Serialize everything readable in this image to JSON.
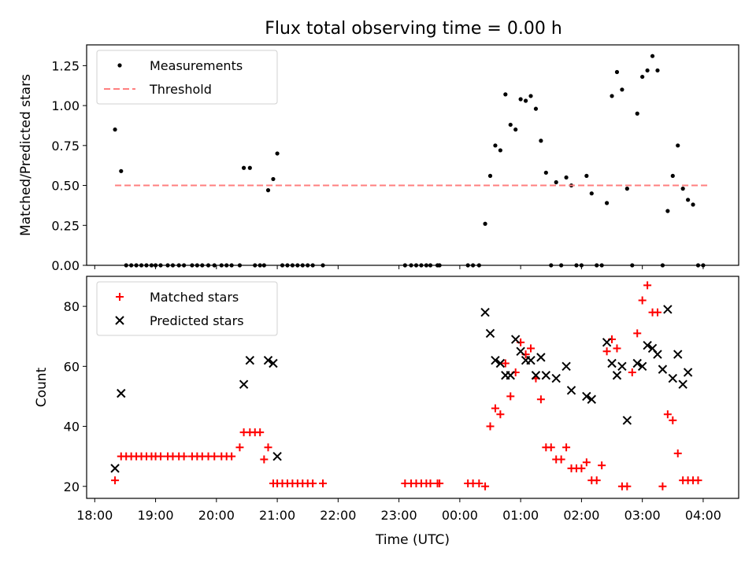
{
  "title": "Flux total observing time = 0.00 h",
  "chart_data": [
    {
      "type": "scatter",
      "ylabel": "Matched/Predicted stars",
      "ylim": [
        0.0,
        1.38
      ],
      "xlim": [
        "17:52",
        "04:35"
      ],
      "y_ticks": [
        "0.00",
        "0.25",
        "0.50",
        "0.75",
        "1.00",
        "1.25"
      ],
      "legend_position": "top-left",
      "series": [
        {
          "name": "Measurements",
          "color": "#000000",
          "marker": "dot",
          "points": [
            [
              "18:20",
              0.85
            ],
            [
              "18:26",
              0.59
            ],
            [
              "18:31",
              0
            ],
            [
              "18:36",
              0
            ],
            [
              "18:41",
              0
            ],
            [
              "18:46",
              0
            ],
            [
              "18:51",
              0
            ],
            [
              "18:56",
              0
            ],
            [
              "19:00",
              0
            ],
            [
              "19:05",
              0
            ],
            [
              "19:12",
              0
            ],
            [
              "19:17",
              0
            ],
            [
              "19:23",
              0
            ],
            [
              "19:28",
              0
            ],
            [
              "19:36",
              0
            ],
            [
              "19:41",
              0
            ],
            [
              "19:46",
              0
            ],
            [
              "19:52",
              0
            ],
            [
              "19:58",
              0
            ],
            [
              "20:05",
              0
            ],
            [
              "20:10",
              0
            ],
            [
              "20:15",
              0
            ],
            [
              "20:23",
              0
            ],
            [
              "20:27",
              0.61
            ],
            [
              "20:33",
              0.61
            ],
            [
              "20:38",
              0
            ],
            [
              "20:43",
              0
            ],
            [
              "20:47",
              0
            ],
            [
              "20:51",
              0.47
            ],
            [
              "20:56",
              0.54
            ],
            [
              "21:00",
              0.7
            ],
            [
              "21:05",
              0
            ],
            [
              "21:10",
              0
            ],
            [
              "21:15",
              0
            ],
            [
              "21:20",
              0
            ],
            [
              "21:25",
              0
            ],
            [
              "21:30",
              0
            ],
            [
              "21:35",
              0
            ],
            [
              "21:45",
              0
            ],
            [
              "23:06",
              0
            ],
            [
              "23:12",
              0
            ],
            [
              "23:17",
              0
            ],
            [
              "23:22",
              0
            ],
            [
              "23:27",
              0
            ],
            [
              "23:31",
              0
            ],
            [
              "23:38",
              0
            ],
            [
              "23:40",
              0
            ],
            [
              "00:08",
              0
            ],
            [
              "00:13",
              0
            ],
            [
              "00:19",
              0
            ],
            [
              "00:25",
              0.26
            ],
            [
              "00:30",
              0.56
            ],
            [
              "00:35",
              0.75
            ],
            [
              "00:40",
              0.72
            ],
            [
              "00:45",
              1.07
            ],
            [
              "00:50",
              0.88
            ],
            [
              "00:55",
              0.85
            ],
            [
              "01:00",
              1.04
            ],
            [
              "01:05",
              1.03
            ],
            [
              "01:10",
              1.06
            ],
            [
              "01:15",
              0.98
            ],
            [
              "01:20",
              0.78
            ],
            [
              "01:25",
              0.58
            ],
            [
              "01:30",
              0
            ],
            [
              "01:35",
              0.52
            ],
            [
              "01:40",
              0
            ],
            [
              "01:45",
              0.55
            ],
            [
              "01:50",
              0.5
            ],
            [
              "01:55",
              0
            ],
            [
              "02:00",
              0
            ],
            [
              "02:05",
              0.56
            ],
            [
              "02:10",
              0.45
            ],
            [
              "02:15",
              0
            ],
            [
              "02:20",
              0
            ],
            [
              "02:25",
              0.39
            ],
            [
              "02:30",
              1.06
            ],
            [
              "02:35",
              1.21
            ],
            [
              "02:40",
              1.1
            ],
            [
              "02:45",
              0.48
            ],
            [
              "02:50",
              0
            ],
            [
              "02:55",
              0.95
            ],
            [
              "03:00",
              1.18
            ],
            [
              "03:05",
              1.22
            ],
            [
              "03:10",
              1.31
            ],
            [
              "03:15",
              1.22
            ],
            [
              "03:20",
              0
            ],
            [
              "03:25",
              0.34
            ],
            [
              "03:30",
              0.56
            ],
            [
              "03:35",
              0.75
            ],
            [
              "03:40",
              0.48
            ],
            [
              "03:45",
              0.41
            ],
            [
              "03:50",
              0.38
            ],
            [
              "03:55",
              0
            ],
            [
              "04:00",
              0
            ]
          ]
        },
        {
          "name": "Threshold",
          "color": "#ff7f7f",
          "style": "dashed",
          "points": [
            [
              "18:20",
              0.5
            ],
            [
              "04:05",
              0.5
            ]
          ]
        }
      ]
    },
    {
      "type": "scatter",
      "xlabel": "Time (UTC)",
      "ylabel": "Count",
      "ylim": [
        16,
        90
      ],
      "xlim": [
        "17:52",
        "04:35"
      ],
      "y_ticks": [
        "20",
        "40",
        "60",
        "80"
      ],
      "x_ticks": [
        "18:00",
        "19:00",
        "20:00",
        "21:00",
        "22:00",
        "23:00",
        "00:00",
        "01:00",
        "02:00",
        "03:00",
        "04:00"
      ],
      "legend_position": "top-left",
      "series": [
        {
          "name": "Matched stars",
          "color": "#ff0000",
          "marker": "plus",
          "points": [
            [
              "18:20",
              22
            ],
            [
              "18:26",
              30
            ],
            [
              "18:31",
              30
            ],
            [
              "18:36",
              30
            ],
            [
              "18:41",
              30
            ],
            [
              "18:46",
              30
            ],
            [
              "18:51",
              30
            ],
            [
              "18:56",
              30
            ],
            [
              "19:00",
              30
            ],
            [
              "19:05",
              30
            ],
            [
              "19:12",
              30
            ],
            [
              "19:17",
              30
            ],
            [
              "19:23",
              30
            ],
            [
              "19:28",
              30
            ],
            [
              "19:36",
              30
            ],
            [
              "19:41",
              30
            ],
            [
              "19:46",
              30
            ],
            [
              "19:52",
              30
            ],
            [
              "19:58",
              30
            ],
            [
              "20:05",
              30
            ],
            [
              "20:10",
              30
            ],
            [
              "20:15",
              30
            ],
            [
              "20:23",
              33
            ],
            [
              "20:27",
              38
            ],
            [
              "20:33",
              38
            ],
            [
              "20:38",
              38
            ],
            [
              "20:43",
              38
            ],
            [
              "20:47",
              29
            ],
            [
              "20:51",
              33
            ],
            [
              "20:56",
              21
            ],
            [
              "21:00",
              21
            ],
            [
              "21:05",
              21
            ],
            [
              "21:10",
              21
            ],
            [
              "21:15",
              21
            ],
            [
              "21:20",
              21
            ],
            [
              "21:25",
              21
            ],
            [
              "21:30",
              21
            ],
            [
              "21:35",
              21
            ],
            [
              "21:45",
              21
            ],
            [
              "23:06",
              21
            ],
            [
              "23:12",
              21
            ],
            [
              "23:17",
              21
            ],
            [
              "23:22",
              21
            ],
            [
              "23:27",
              21
            ],
            [
              "23:31",
              21
            ],
            [
              "23:38",
              21
            ],
            [
              "23:40",
              21
            ],
            [
              "00:08",
              21
            ],
            [
              "00:13",
              21
            ],
            [
              "00:19",
              21
            ],
            [
              "00:25",
              20
            ],
            [
              "00:30",
              40
            ],
            [
              "00:35",
              46
            ],
            [
              "00:40",
              44
            ],
            [
              "00:45",
              61
            ],
            [
              "00:50",
              50
            ],
            [
              "00:55",
              58
            ],
            [
              "01:00",
              68
            ],
            [
              "01:05",
              64
            ],
            [
              "01:10",
              66
            ],
            [
              "01:15",
              56
            ],
            [
              "01:20",
              49
            ],
            [
              "01:25",
              33
            ],
            [
              "01:30",
              33
            ],
            [
              "01:35",
              29
            ],
            [
              "01:40",
              29
            ],
            [
              "01:45",
              33
            ],
            [
              "01:50",
              26
            ],
            [
              "01:55",
              26
            ],
            [
              "02:00",
              26
            ],
            [
              "02:05",
              28
            ],
            [
              "02:10",
              22
            ],
            [
              "02:15",
              22
            ],
            [
              "02:20",
              27
            ],
            [
              "02:25",
              65
            ],
            [
              "02:30",
              69
            ],
            [
              "02:35",
              66
            ],
            [
              "02:40",
              20
            ],
            [
              "02:45",
              20
            ],
            [
              "02:50",
              58
            ],
            [
              "02:55",
              71
            ],
            [
              "03:00",
              82
            ],
            [
              "03:05",
              87
            ],
            [
              "03:10",
              78
            ],
            [
              "03:15",
              78
            ],
            [
              "03:20",
              20
            ],
            [
              "03:25",
              44
            ],
            [
              "03:30",
              42
            ],
            [
              "03:35",
              31
            ],
            [
              "03:40",
              22
            ],
            [
              "03:45",
              22
            ],
            [
              "03:50",
              22
            ],
            [
              "03:55",
              22
            ]
          ]
        },
        {
          "name": "Predicted stars",
          "color": "#000000",
          "marker": "x",
          "points": [
            [
              "18:20",
              26
            ],
            [
              "18:26",
              51
            ],
            [
              "20:27",
              54
            ],
            [
              "20:33",
              62
            ],
            [
              "20:51",
              62
            ],
            [
              "20:56",
              61
            ],
            [
              "21:00",
              30
            ],
            [
              "00:25",
              78
            ],
            [
              "00:30",
              71
            ],
            [
              "00:35",
              62
            ],
            [
              "00:40",
              61
            ],
            [
              "00:45",
              57
            ],
            [
              "00:50",
              57
            ],
            [
              "00:55",
              69
            ],
            [
              "01:00",
              65
            ],
            [
              "01:05",
              62
            ],
            [
              "01:10",
              62
            ],
            [
              "01:15",
              57
            ],
            [
              "01:20",
              63
            ],
            [
              "01:25",
              57
            ],
            [
              "01:35",
              56
            ],
            [
              "01:45",
              60
            ],
            [
              "01:50",
              52
            ],
            [
              "02:05",
              50
            ],
            [
              "02:10",
              49
            ],
            [
              "02:25",
              68
            ],
            [
              "02:30",
              61
            ],
            [
              "02:35",
              57
            ],
            [
              "02:40",
              60
            ],
            [
              "02:45",
              42
            ],
            [
              "02:55",
              61
            ],
            [
              "03:00",
              60
            ],
            [
              "03:05",
              67
            ],
            [
              "03:10",
              66
            ],
            [
              "03:15",
              64
            ],
            [
              "03:20",
              59
            ],
            [
              "03:25",
              79
            ],
            [
              "03:30",
              56
            ],
            [
              "03:35",
              64
            ],
            [
              "03:40",
              54
            ],
            [
              "03:45",
              58
            ]
          ]
        }
      ]
    }
  ]
}
